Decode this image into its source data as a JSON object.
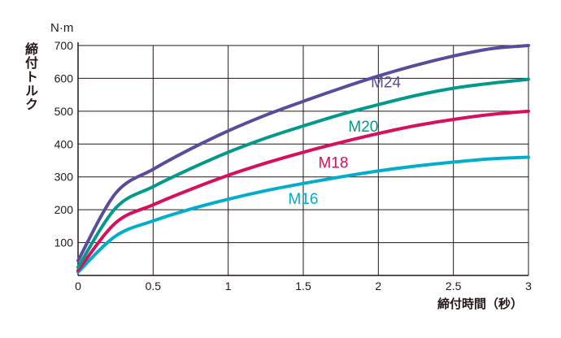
{
  "chart_data": {
    "type": "line",
    "title": "",
    "ylabel": "締付トルク",
    "yunit": "N·m",
    "xlabel": "締付時間（秒）",
    "xlim": [
      0,
      3
    ],
    "ylim": [
      0,
      700
    ],
    "grid": true,
    "x_ticks": [
      "0",
      "0.5",
      "1",
      "1.5",
      "2",
      "2.5",
      "3"
    ],
    "y_ticks": [
      "100",
      "200",
      "300",
      "400",
      "500",
      "600",
      "700"
    ],
    "x": [
      0,
      0.25,
      0.5,
      0.75,
      1,
      1.25,
      1.5,
      1.75,
      2,
      2.25,
      2.5,
      2.75,
      3
    ],
    "series": [
      {
        "name": "M24",
        "color": "#5a4c9c",
        "values": [
          45,
          250,
          323,
          385,
          440,
          488,
          530,
          570,
          607,
          640,
          668,
          690,
          700
        ]
      },
      {
        "name": "M20",
        "color": "#00998a",
        "values": [
          25,
          205,
          270,
          325,
          375,
          418,
          455,
          490,
          520,
          548,
          570,
          585,
          597
        ]
      },
      {
        "name": "M18",
        "color": "#d70f5d",
        "values": [
          15,
          160,
          215,
          262,
          305,
          342,
          375,
          405,
          432,
          456,
          475,
          490,
          500
        ]
      },
      {
        "name": "M16",
        "color": "#00aecb",
        "values": [
          10,
          120,
          166,
          202,
          232,
          258,
          280,
          300,
          318,
          333,
          345,
          355,
          360
        ]
      }
    ]
  }
}
